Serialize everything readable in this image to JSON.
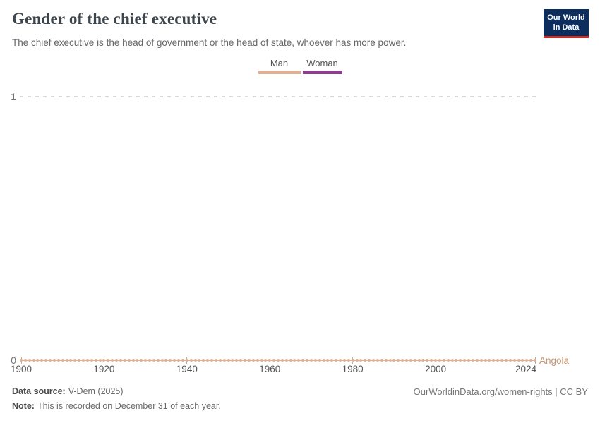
{
  "header": {
    "title": "Gender of the chief executive",
    "subtitle": "The chief executive is the head of government or the head of state, whoever has more power.",
    "logo": {
      "line1": "Our World",
      "line2": "in Data"
    }
  },
  "legend": {
    "items": [
      {
        "label": "Man",
        "color": "#e0b096"
      },
      {
        "label": "Woman",
        "color": "#8c3f8e"
      }
    ]
  },
  "chart_data": {
    "type": "line",
    "title": "Gender of the chief executive",
    "subtitle": "The chief executive is the head of government or the head of state, whoever has more power.",
    "x_range": [
      1900,
      2024
    ],
    "y_range": [
      0,
      1
    ],
    "x_ticks": [
      1900,
      1920,
      1940,
      1960,
      1980,
      2000,
      2024
    ],
    "y_ticks": [
      0,
      1
    ],
    "grid": "horizontal dashed gridline at y=1 only",
    "legend_position": "top-center",
    "value_encoding": {
      "0": "Man",
      "1": "Woman"
    },
    "series": [
      {
        "name": "Angola",
        "color": "#e0b096",
        "x_start": 1900,
        "x_end": 2024,
        "point_interval_years": 1,
        "constant_value": 0,
        "meaning": "Chief executive was a man every year 1900-2024"
      }
    ]
  },
  "footer": {
    "datasource_label": "Data source:",
    "datasource_value": "V-Dem (2025)",
    "note_label": "Note:",
    "note_value": "This is recorded on December 31 of each year.",
    "rights": "OurWorldinData.org/women-rights | CC BY"
  }
}
